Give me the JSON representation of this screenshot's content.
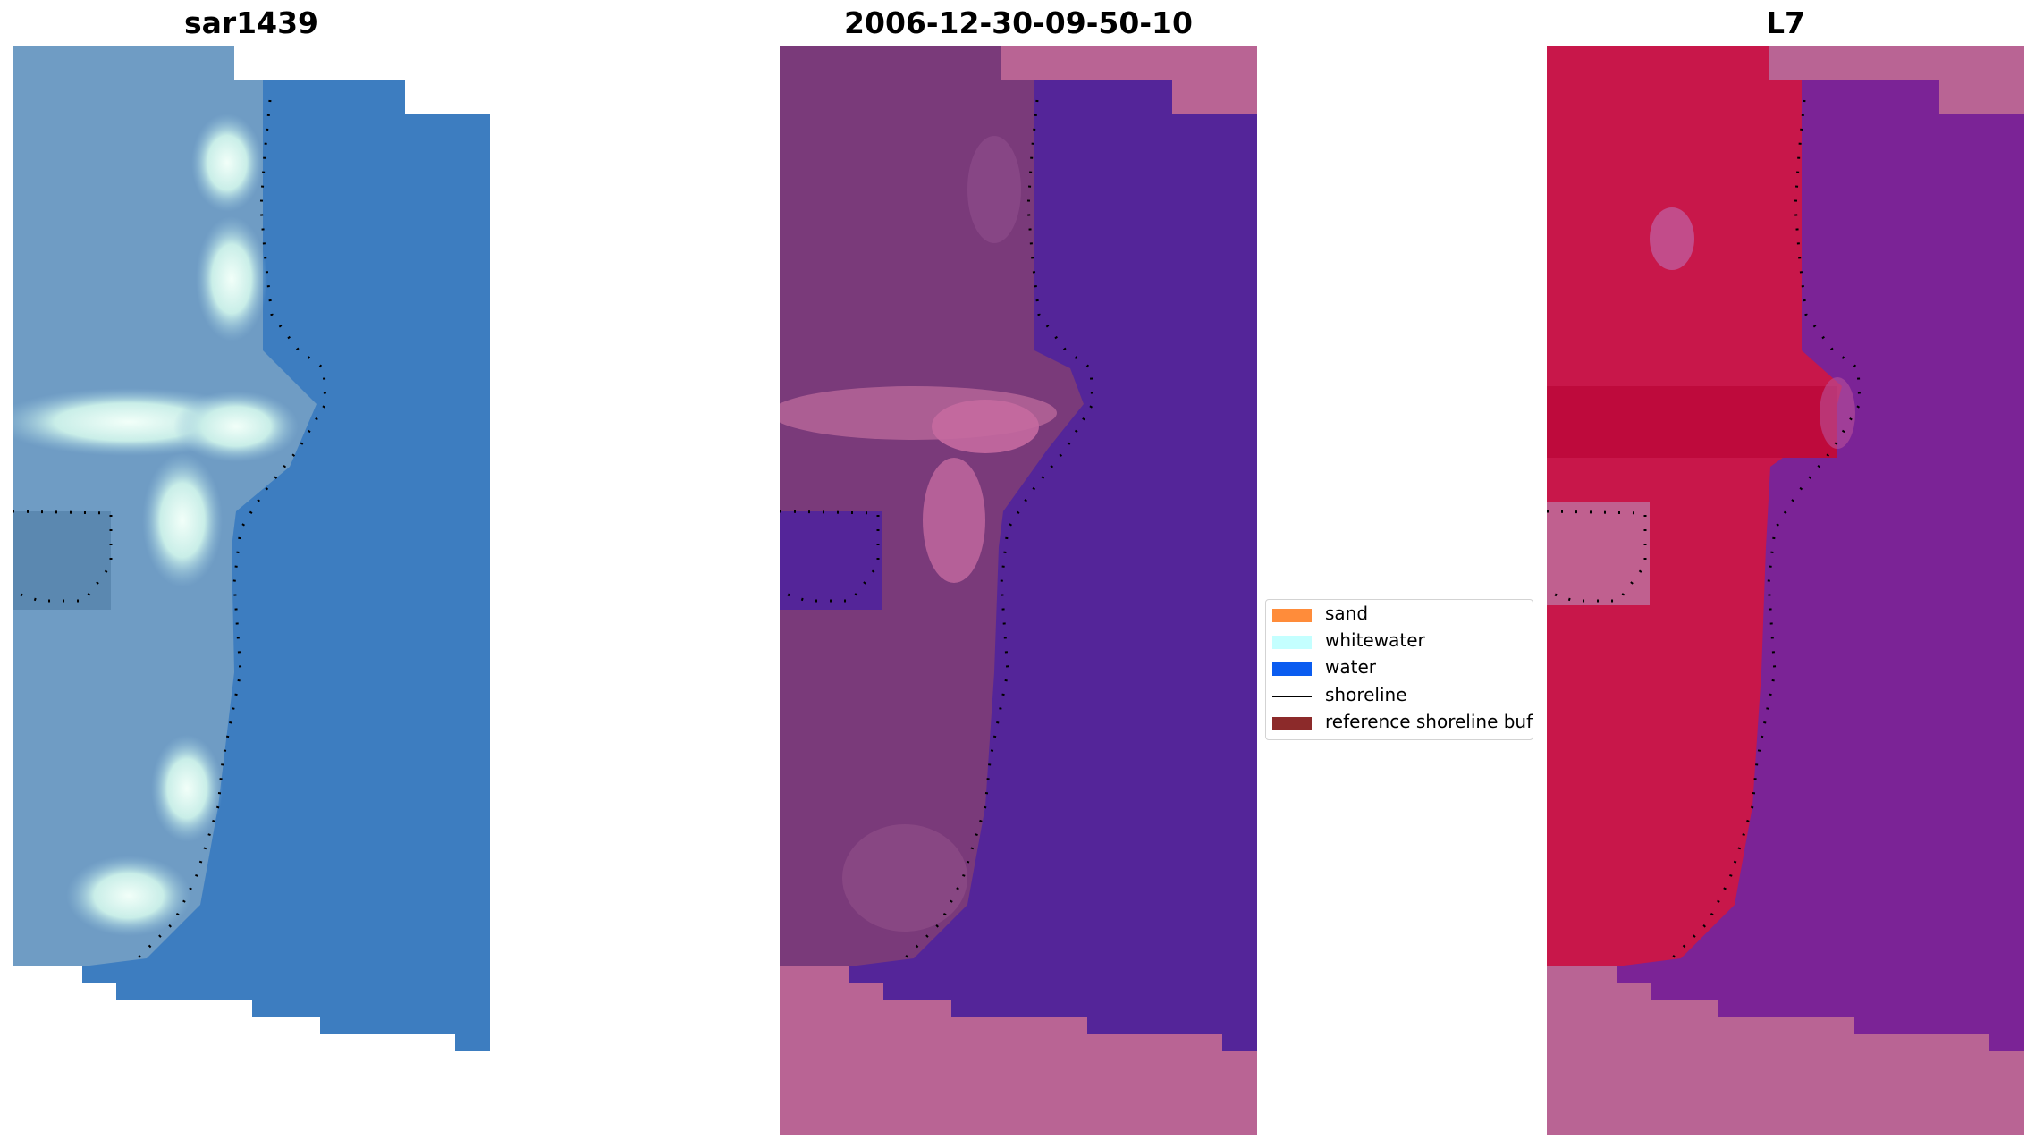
{
  "panels": [
    {
      "title": "sar1439"
    },
    {
      "title": "2006-12-30-09-50-10"
    },
    {
      "title": "L7"
    }
  ],
  "legend": {
    "items": [
      {
        "label": "sand",
        "type": "patch",
        "color": "#ff8c3a"
      },
      {
        "label": "whitewater",
        "type": "patch",
        "color": "#c4ffff"
      },
      {
        "label": "water",
        "type": "patch",
        "color": "#0a5cf0"
      },
      {
        "label": "shoreline",
        "type": "line",
        "color": "#000000"
      },
      {
        "label": "reference shoreline buff",
        "type": "patch",
        "color": "#8c2a2a"
      }
    ]
  },
  "colors": {
    "rgb_water": "#3d7dc0",
    "rgb_land": "#6f9cc4",
    "rgb_whitewater": "#d4f4f0",
    "class_water": "#542599",
    "class_land": "#7a3a7a",
    "class_nodata": "#b96494",
    "mndwi_land": "#c8174a",
    "mndwi_water": "#7b2396",
    "nodata_pink": "#b96494"
  }
}
